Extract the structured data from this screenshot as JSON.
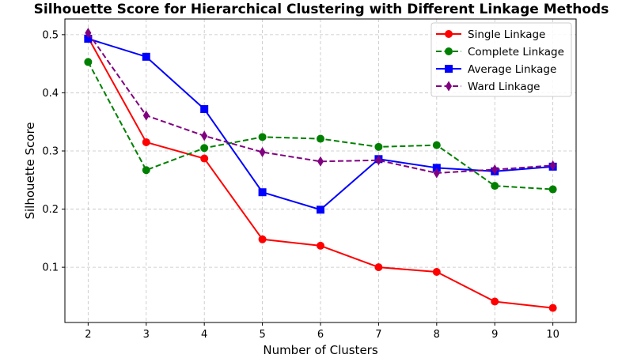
{
  "chart_data": {
    "type": "line",
    "title": "Silhouette Score for Hierarchical Clustering with Different Linkage Methods",
    "xlabel": "Number of Clusters",
    "ylabel": "Silhouette Score",
    "x": [
      2,
      3,
      4,
      5,
      6,
      7,
      8,
      9,
      10
    ],
    "xlim": [
      1.6,
      10.4
    ],
    "ylim": [
      0.005,
      0.527
    ],
    "xticks": [
      "2",
      "3",
      "4",
      "5",
      "6",
      "7",
      "8",
      "9",
      "10"
    ],
    "yticks": [
      "0.1",
      "0.2",
      "0.3",
      "0.4",
      "0.5"
    ],
    "ytick_values": [
      0.1,
      0.2,
      0.3,
      0.4,
      0.5
    ],
    "grid": true,
    "legend_position": "top-right",
    "series": [
      {
        "name": "Single Linkage",
        "color": "#ff0000",
        "linestyle": "solid",
        "marker": "circle",
        "values": [
          0.495,
          0.315,
          0.287,
          0.148,
          0.137,
          0.1,
          0.092,
          0.041,
          0.03
        ]
      },
      {
        "name": "Complete Linkage",
        "color": "#008000",
        "linestyle": "dashed",
        "marker": "circle",
        "values": [
          0.453,
          0.267,
          0.305,
          0.324,
          0.321,
          0.307,
          0.31,
          0.24,
          0.234
        ]
      },
      {
        "name": "Average Linkage",
        "color": "#0000ff",
        "linestyle": "solid",
        "marker": "square",
        "values": [
          0.493,
          0.462,
          0.372,
          0.229,
          0.199,
          0.286,
          0.271,
          0.265,
          0.273
        ]
      },
      {
        "name": "Ward Linkage",
        "color": "#800080",
        "linestyle": "dashed",
        "marker": "diamond",
        "values": [
          0.503,
          0.361,
          0.326,
          0.298,
          0.282,
          0.284,
          0.262,
          0.268,
          0.275
        ]
      }
    ]
  }
}
